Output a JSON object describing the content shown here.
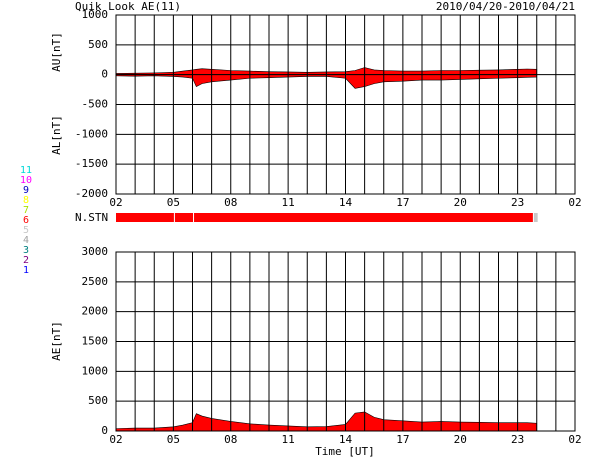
{
  "chart_data": [
    {
      "type": "area",
      "title": "Quik Look AE(11)",
      "subtitle": "2010/04/20-2010/04/21",
      "ylabels": [
        "AU[nT]",
        "AL[nT]"
      ],
      "x": [
        0,
        1,
        2,
        3,
        3.5,
        4,
        4.2,
        4.5,
        5,
        6,
        7,
        8,
        9,
        10,
        11,
        12,
        12.5,
        13,
        13.5,
        14,
        15,
        16,
        17,
        18,
        19,
        20,
        21,
        21.5,
        22
      ],
      "series": [
        {
          "name": "AU",
          "color": "#ff0000",
          "values": [
            20,
            25,
            30,
            40,
            60,
            80,
            90,
            100,
            90,
            70,
            60,
            50,
            45,
            40,
            45,
            50,
            70,
            120,
            80,
            70,
            60,
            60,
            70,
            70,
            75,
            80,
            90,
            95,
            90
          ]
        },
        {
          "name": "AL",
          "color": "#ff0000",
          "values": [
            -20,
            -25,
            -20,
            -30,
            -40,
            -60,
            -200,
            -150,
            -120,
            -90,
            -60,
            -50,
            -40,
            -30,
            -30,
            -60,
            -230,
            -200,
            -150,
            -120,
            -110,
            -90,
            -90,
            -80,
            -70,
            -60,
            -50,
            -45,
            -40
          ]
        }
      ],
      "xlim": [
        0,
        24
      ],
      "xticks": [
        {
          "value": 0,
          "label": "02"
        },
        {
          "value": 3,
          "label": "05"
        },
        {
          "value": 6,
          "label": "08"
        },
        {
          "value": 9,
          "label": "11"
        },
        {
          "value": 12,
          "label": "14"
        },
        {
          "value": 15,
          "label": "17"
        },
        {
          "value": 18,
          "label": "20"
        },
        {
          "value": 21,
          "label": "23"
        },
        {
          "value": 24,
          "label": "02"
        }
      ],
      "xgrid": [
        0,
        1,
        2,
        3,
        4,
        5,
        6,
        7,
        8,
        9,
        10,
        11,
        12,
        13,
        14,
        15,
        16,
        17,
        18,
        19,
        20,
        21,
        22,
        23,
        24
      ],
      "ylim": [
        -2000,
        1000
      ],
      "yticks": [
        -2000,
        -1500,
        -1000,
        -500,
        0,
        500,
        1000
      ],
      "grid": true
    },
    {
      "type": "strip",
      "ylabel": "N.STN",
      "bins": [
        0,
        3.08,
        4.08,
        21.85,
        22.1
      ],
      "values": [
        6,
        6,
        6,
        5
      ],
      "xlim": [
        0,
        24
      ],
      "legend_labels": [
        "11",
        "10",
        "9",
        "8",
        "7",
        "6",
        "5",
        "4",
        "3",
        "2",
        "1"
      ],
      "legend_colors": [
        "#00d8d8",
        "#ff00ff",
        "#0000c0",
        "#ffff00",
        "#a8e000",
        "#ff0000",
        "#c8c8c8",
        "#a0a0a0",
        "#008080",
        "#800080",
        "#0000ff"
      ]
    },
    {
      "type": "area",
      "xlabel": "Time [UT]",
      "ylabels": [
        "AE[nT]"
      ],
      "x": [
        0,
        1,
        2,
        3,
        3.5,
        4,
        4.2,
        4.5,
        5,
        6,
        7,
        8,
        9,
        10,
        11,
        12,
        12.5,
        13,
        13.5,
        14,
        15,
        16,
        17,
        18,
        19,
        20,
        21,
        21.5,
        22
      ],
      "series": [
        {
          "name": "AE",
          "color": "#ff0000",
          "values": [
            40,
            50,
            50,
            70,
            100,
            140,
            290,
            250,
            210,
            160,
            120,
            100,
            85,
            70,
            75,
            110,
            300,
            320,
            230,
            190,
            170,
            150,
            160,
            150,
            145,
            140,
            140,
            140,
            130
          ]
        }
      ],
      "xlim": [
        0,
        24
      ],
      "xticks": [
        {
          "value": 0,
          "label": "02"
        },
        {
          "value": 3,
          "label": "05"
        },
        {
          "value": 6,
          "label": "08"
        },
        {
          "value": 9,
          "label": "11"
        },
        {
          "value": 12,
          "label": "14"
        },
        {
          "value": 15,
          "label": "17"
        },
        {
          "value": 18,
          "label": "20"
        },
        {
          "value": 21,
          "label": "23"
        },
        {
          "value": 24,
          "label": "02"
        }
      ],
      "xgrid": [
        0,
        1,
        2,
        3,
        4,
        5,
        6,
        7,
        8,
        9,
        10,
        11,
        12,
        13,
        14,
        15,
        16,
        17,
        18,
        19,
        20,
        21,
        22,
        23,
        24
      ],
      "ylim": [
        0,
        3000
      ],
      "yticks": [
        0,
        500,
        1000,
        1500,
        2000,
        2500,
        3000
      ],
      "grid": true
    }
  ]
}
